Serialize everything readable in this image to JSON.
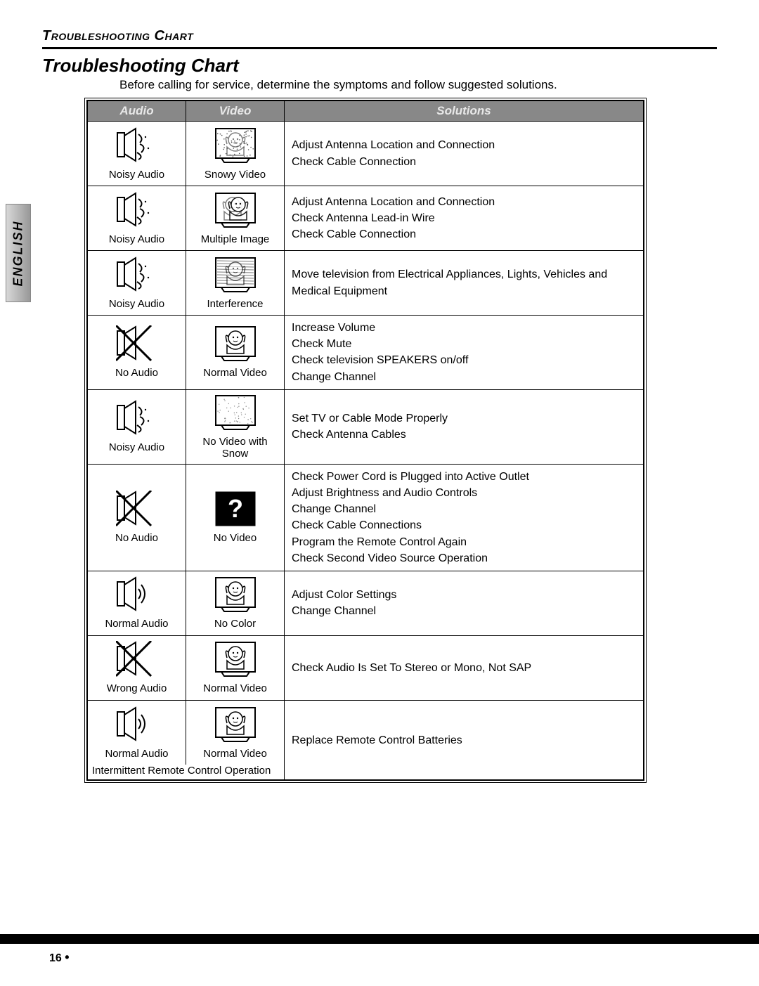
{
  "side_tab": "ENGLISH",
  "header": "Troubleshooting Chart",
  "title": "Troubleshooting Chart",
  "subtitle": "Before calling for service, determine the symptoms and follow suggested solutions.",
  "columns": {
    "audio": "Audio",
    "video": "Video",
    "solutions": "Solutions"
  },
  "rows": [
    {
      "audio_label": "Noisy Audio",
      "audio_icon": "speaker-noisy",
      "video_label": "Snowy Video",
      "video_icon": "tv-snowy",
      "solution": "Adjust Antenna Location and Connection\nCheck Cable Connection"
    },
    {
      "audio_label": "Noisy Audio",
      "audio_icon": "speaker-noisy",
      "video_label": "Multiple Image",
      "video_icon": "tv-double",
      "solution": "Adjust Antenna Location and Connection\nCheck Antenna Lead-in Wire\nCheck Cable Connection"
    },
    {
      "audio_label": "Noisy Audio",
      "audio_icon": "speaker-noisy",
      "video_label": "Interference",
      "video_icon": "tv-interf",
      "solution": "Move television from Electrical Appliances, Lights, Vehicles and Medical Equipment"
    },
    {
      "audio_label": "No Audio",
      "audio_icon": "speaker-x",
      "video_label": "Normal Video",
      "video_icon": "tv-normal",
      "solution": "Increase Volume\nCheck Mute\nCheck television SPEAKERS on/off\nChange Channel"
    },
    {
      "audio_label": "Noisy Audio",
      "audio_icon": "speaker-noisy",
      "video_label": "No Video with Snow",
      "video_icon": "tv-blank-snow",
      "solution": "Set TV or Cable Mode Properly\nCheck Antenna Cables"
    },
    {
      "audio_label": "No Audio",
      "audio_icon": "speaker-x",
      "video_label": "No Video",
      "video_icon": "tv-question",
      "solution": "Check Power Cord is Plugged into Active Outlet\nAdjust Brightness and Audio Controls\nChange Channel\nCheck Cable Connections\nProgram the Remote Control Again\nCheck Second Video Source Operation"
    },
    {
      "audio_label": "Normal Audio",
      "audio_icon": "speaker-normal",
      "video_label": "No Color",
      "video_icon": "tv-normal",
      "solution": "Adjust Color Settings\nChange Channel"
    },
    {
      "audio_label": "Wrong Audio",
      "audio_icon": "speaker-x",
      "video_label": "Normal Video",
      "video_icon": "tv-normal",
      "solution": "Check Audio Is Set To Stereo or Mono, Not SAP"
    },
    {
      "audio_label": "Normal Audio",
      "audio_icon": "speaker-normal",
      "video_label": "Normal Video",
      "video_icon": "tv-normal",
      "note": "Intermittent Remote Control Operation",
      "solution": "Replace Remote Control Batteries"
    }
  ],
  "page_number": "16",
  "icons": {
    "speaker_box": {
      "stroke": "#000",
      "fill": "#fff"
    }
  }
}
